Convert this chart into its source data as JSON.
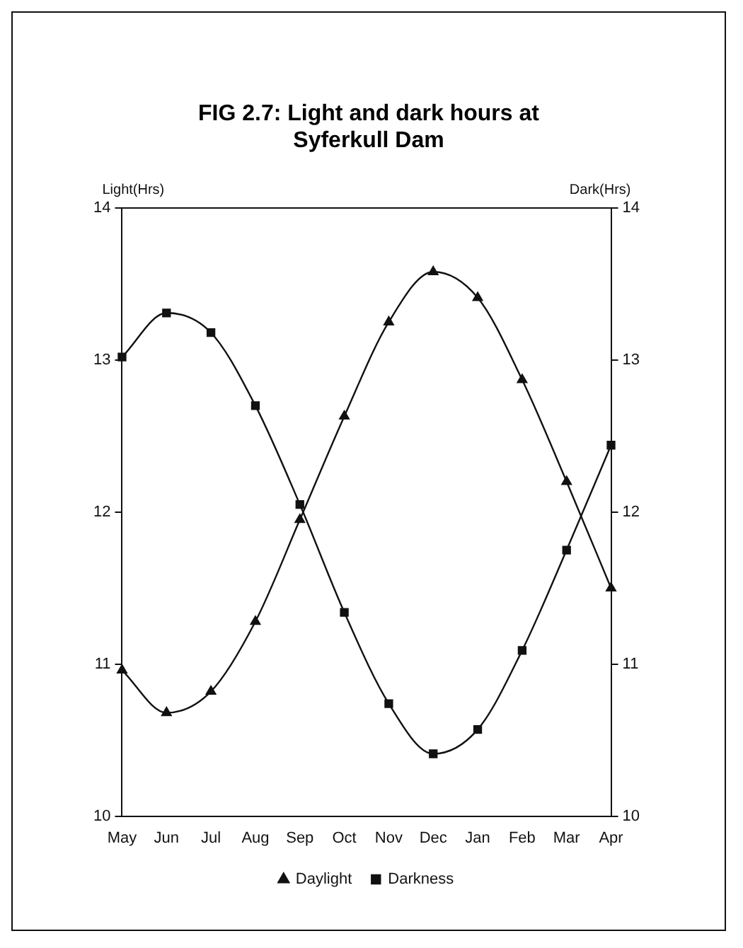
{
  "chart_data": {
    "type": "line",
    "title": "FIG 2.7: Light and dark hours at Syferkull Dam",
    "ylabel": "Light(Hrs)",
    "y2label": "Dark(Hrs)",
    "categories": [
      "May",
      "Jun",
      "Jul",
      "Aug",
      "Sep",
      "Oct",
      "Nov",
      "Dec",
      "Jan",
      "Feb",
      "Mar",
      "Apr"
    ],
    "series": [
      {
        "name": "Daylight",
        "color": "#111111",
        "marker": "triangle",
        "values": [
          10.96,
          10.68,
          10.82,
          11.28,
          11.95,
          12.63,
          13.25,
          13.58,
          13.41,
          12.87,
          12.2,
          11.5
        ]
      },
      {
        "name": "Darkness",
        "color": "#111111",
        "marker": "square",
        "axis": "y2",
        "values": [
          13.02,
          13.31,
          13.18,
          12.7,
          12.05,
          11.34,
          10.74,
          10.41,
          10.57,
          11.09,
          11.75,
          12.44
        ]
      }
    ],
    "ylim": [
      10,
      14
    ],
    "yticks": [
      10,
      11,
      12,
      13,
      14
    ],
    "y2lim": [
      10,
      14
    ],
    "y2ticks": [
      10,
      11,
      12,
      13,
      14
    ],
    "grid": false,
    "legend": "bottom",
    "line_style": "solid"
  }
}
